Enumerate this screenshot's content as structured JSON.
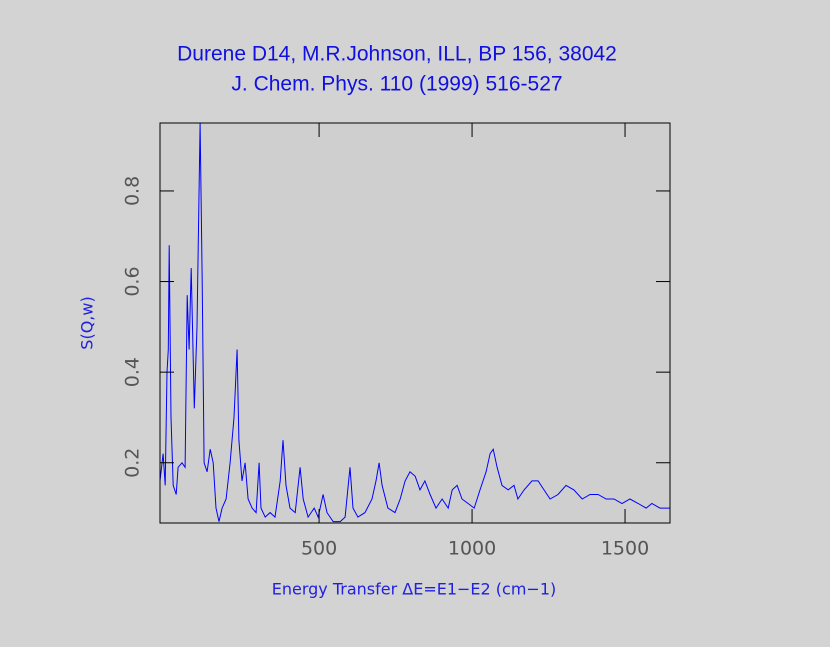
{
  "chart_data": {
    "type": "line",
    "title": "Durene D14, M.R.Johnson, ILL, BP 156, 38042",
    "subtitle": "J. Chem. Phys. 110 (1999) 516-527",
    "x_label": "Energy Transfer ΔE=E1−E2 (cm−1)",
    "y_label": "S(Q,w)",
    "xlim": [
      -20,
      1647
    ],
    "ylim": [
      0.067,
      0.95
    ],
    "xticks": [
      500,
      1000,
      1500
    ],
    "yticks": [
      0.2,
      0.4,
      0.6,
      0.8
    ],
    "x": [
      -20,
      -10,
      -3,
      3,
      7,
      10,
      16,
      23,
      33,
      39,
      52,
      62,
      69,
      75,
      82,
      92,
      101,
      111,
      118,
      124,
      134,
      144,
      154,
      163,
      173,
      183,
      196,
      209,
      222,
      232,
      238,
      248,
      258,
      268,
      281,
      294,
      304,
      310,
      324,
      340,
      356,
      373,
      382,
      392,
      405,
      422,
      438,
      448,
      464,
      484,
      497,
      513,
      526,
      546,
      569,
      585,
      601,
      611,
      627,
      650,
      673,
      686,
      696,
      706,
      725,
      748,
      765,
      781,
      797,
      814,
      830,
      846,
      863,
      882,
      902,
      922,
      935,
      951,
      967,
      987,
      1007,
      1026,
      1046,
      1059,
      1069,
      1082,
      1098,
      1118,
      1137,
      1150,
      1170,
      1196,
      1216,
      1235,
      1255,
      1281,
      1307,
      1333,
      1360,
      1386,
      1412,
      1438,
      1464,
      1490,
      1516,
      1543,
      1569,
      1588,
      1614,
      1647
    ],
    "series": [
      {
        "color": "#0000ff",
        "values": [
          0.16,
          0.22,
          0.15,
          0.4,
          0.45,
          0.68,
          0.3,
          0.15,
          0.13,
          0.19,
          0.2,
          0.19,
          0.57,
          0.45,
          0.63,
          0.32,
          0.5,
          0.95,
          0.6,
          0.2,
          0.18,
          0.23,
          0.2,
          0.1,
          0.07,
          0.1,
          0.12,
          0.2,
          0.3,
          0.45,
          0.25,
          0.16,
          0.2,
          0.12,
          0.1,
          0.09,
          0.2,
          0.1,
          0.08,
          0.09,
          0.08,
          0.16,
          0.25,
          0.15,
          0.1,
          0.09,
          0.19,
          0.12,
          0.08,
          0.1,
          0.08,
          0.13,
          0.09,
          0.07,
          0.07,
          0.08,
          0.19,
          0.1,
          0.08,
          0.09,
          0.12,
          0.16,
          0.2,
          0.15,
          0.1,
          0.09,
          0.12,
          0.16,
          0.18,
          0.17,
          0.14,
          0.16,
          0.13,
          0.1,
          0.12,
          0.1,
          0.14,
          0.15,
          0.12,
          0.11,
          0.1,
          0.14,
          0.18,
          0.22,
          0.23,
          0.19,
          0.15,
          0.14,
          0.15,
          0.12,
          0.14,
          0.16,
          0.16,
          0.14,
          0.12,
          0.13,
          0.15,
          0.14,
          0.12,
          0.13,
          0.13,
          0.12,
          0.12,
          0.11,
          0.12,
          0.11,
          0.1,
          0.11,
          0.1,
          0.1
        ]
      }
    ]
  }
}
